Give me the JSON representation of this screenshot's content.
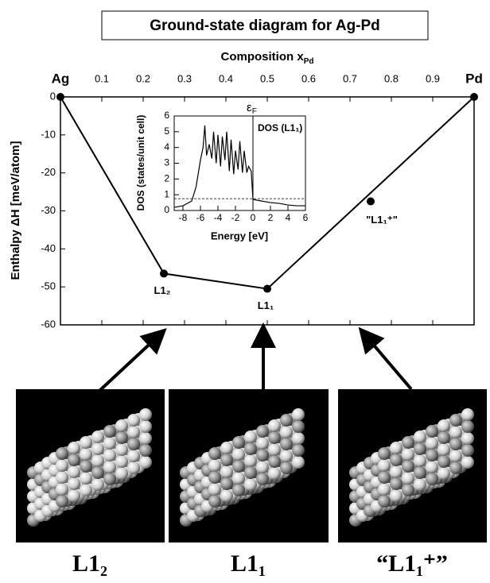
{
  "chart_data": [
    {
      "type": "line",
      "title": "Ground-state diagram for Ag-Pd",
      "x_label": {
        "text": "Composition x",
        "sub": "Pd"
      },
      "y_label": "Enthalpy  ΔH [meV/atom]",
      "xlim": [
        0,
        1
      ],
      "xticks": [
        {
          "value": 0,
          "label": "Ag"
        },
        0.1,
        0.2,
        0.3,
        0.4,
        0.5,
        0.6,
        0.7,
        0.8,
        0.9,
        {
          "value": 1,
          "label": "Pd"
        }
      ],
      "ylim": [
        -60,
        0
      ],
      "yticks": [
        0,
        -10,
        -20,
        -30,
        -40,
        -50,
        -60
      ],
      "series": [
        {
          "color": "#000000",
          "x": [
            0,
            0.25,
            0.5,
            1
          ],
          "values": [
            0,
            -46.5,
            -50.5,
            0
          ]
        },
        {
          "color": "#000000",
          "x": [
            0.75
          ],
          "values": [
            -27.5
          ]
        }
      ],
      "point_labels": [
        {
          "text": "L1₂",
          "x": 0.25,
          "y": -46.5
        },
        {
          "text": "L1₁",
          "x": 0.5,
          "y": -50.5
        },
        {
          "text": "\"L1₁⁺\"",
          "x": 0.75,
          "y": -27.5
        }
      ]
    },
    {
      "type": "line",
      "x_label": "Energy [eV]",
      "y_label": "DOS (states/unit cell)",
      "annotation": "DOS (L1₁)",
      "fermi_label": {
        "text": "ε",
        "sub": "F"
      },
      "xlim": [
        -9,
        6
      ],
      "xticks": [
        -8,
        -6,
        -4,
        -2,
        0,
        2,
        4,
        6
      ],
      "ylim": [
        0,
        6
      ],
      "yticks": [
        0,
        1,
        2,
        3,
        4,
        5,
        6
      ],
      "fermi_energy": 0,
      "dashed_level": 0.75,
      "series": [
        {
          "color": "#000000",
          "x": [
            -9,
            -8,
            -7,
            -6.5,
            -6,
            -5.7,
            -5.5,
            -5.3,
            -5,
            -4.7,
            -4.5,
            -4.2,
            -4,
            -3.7,
            -3.5,
            -3.2,
            -3,
            -2.7,
            -2.5,
            -2.2,
            -2,
            -1.7,
            -1.5,
            -1.2,
            -1,
            -0.7,
            -0.5,
            -0.2,
            0,
            1,
            2,
            3,
            4,
            5,
            6
          ],
          "values": [
            0.2,
            0.3,
            0.6,
            1.5,
            3.2,
            4,
            5.4,
            3.5,
            4.2,
            3.3,
            5,
            3,
            4.8,
            2.8,
            4.7,
            3.2,
            5,
            2.5,
            4.5,
            2.3,
            3.8,
            2.6,
            4.4,
            2.4,
            3.8,
            2.4,
            2.8,
            2.5,
            0.7,
            0.6,
            0.5,
            0.45,
            0.35,
            0.3,
            0.3
          ]
        }
      ]
    }
  ],
  "structures": [
    "L1₂",
    "L1₁",
    "“L1₁⁺”"
  ]
}
